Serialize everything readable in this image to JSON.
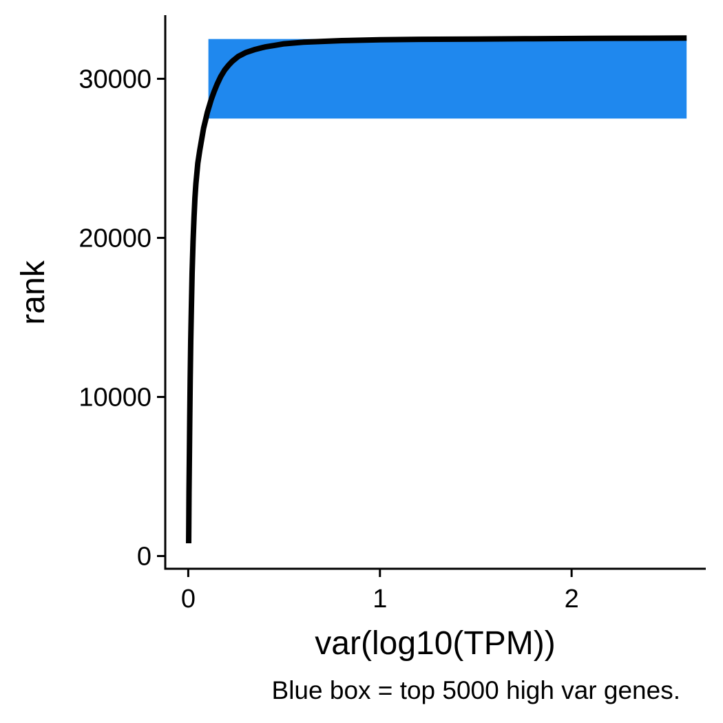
{
  "chart_data": {
    "type": "line",
    "title": "",
    "xlabel": "var(log10(TPM))",
    "ylabel": "rank",
    "caption": "Blue box = top 5000 high var genes.",
    "xlim": [
      -0.12,
      2.7
    ],
    "ylim": [
      -800,
      34000
    ],
    "x_ticks": [
      0,
      1,
      2
    ],
    "x_tick_labels": [
      "0",
      "1",
      "2"
    ],
    "y_ticks": [
      0,
      10000,
      20000,
      30000
    ],
    "y_tick_labels": [
      "0",
      "10000",
      "20000",
      "30000"
    ],
    "grid": false,
    "legend": "none",
    "highlight_box": {
      "x": [
        0.105,
        2.6
      ],
      "y": [
        27500,
        32500
      ],
      "color": "#1f88ee"
    },
    "series": [
      {
        "color": "#000000",
        "x": [
          0.002,
          0.003,
          0.004,
          0.006,
          0.008,
          0.01,
          0.013,
          0.016,
          0.02,
          0.025,
          0.03,
          0.035,
          0.04,
          0.05,
          0.06,
          0.07,
          0.08,
          0.09,
          0.1,
          0.11,
          0.12,
          0.135,
          0.15,
          0.17,
          0.19,
          0.21,
          0.23,
          0.26,
          0.3,
          0.35,
          0.4,
          0.45,
          0.5,
          0.6,
          0.7,
          0.8,
          1.0,
          1.2,
          1.5,
          1.8,
          2.1,
          2.4,
          2.6
        ],
        "y": [
          800,
          2000,
          4000,
          6500,
          8700,
          11000,
          13500,
          15500,
          17800,
          19800,
          21300,
          22500,
          23400,
          24700,
          25500,
          26200,
          26900,
          27400,
          27900,
          28300,
          28700,
          29200,
          29650,
          30150,
          30550,
          30850,
          31100,
          31400,
          31650,
          31850,
          32000,
          32100,
          32200,
          32300,
          32350,
          32400,
          32450,
          32480,
          32500,
          32520,
          32540,
          32550,
          32560
        ]
      }
    ]
  }
}
